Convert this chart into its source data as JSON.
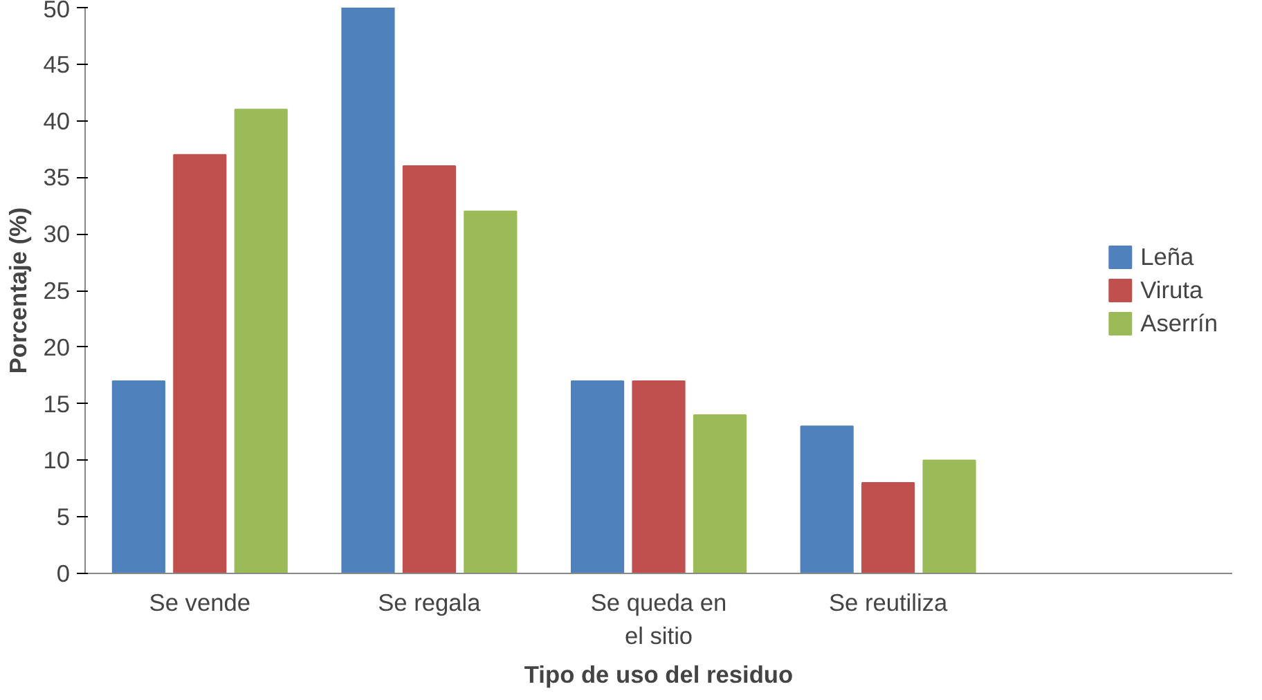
{
  "chart_data": {
    "type": "bar",
    "xlabel": "Tipo de uso del residuo",
    "ylabel": "Porcentaje (%)",
    "categories": [
      "Se vende",
      "Se regala",
      "Se queda en el sitio",
      "Se reutiliza"
    ],
    "series": [
      {
        "name": "Leña",
        "color": "#4f81bd",
        "values": [
          17,
          50,
          17,
          13
        ]
      },
      {
        "name": "Viruta",
        "color": "#c0504d",
        "values": [
          37,
          36,
          17,
          8
        ]
      },
      {
        "name": "Aserrín",
        "color": "#9bbb59",
        "values": [
          41,
          32,
          14,
          10
        ]
      }
    ],
    "ylim": [
      0,
      50
    ],
    "yticks": [
      0,
      5,
      10,
      15,
      20,
      25,
      30,
      35,
      40,
      45,
      50
    ],
    "grid": false,
    "legend": "right"
  }
}
